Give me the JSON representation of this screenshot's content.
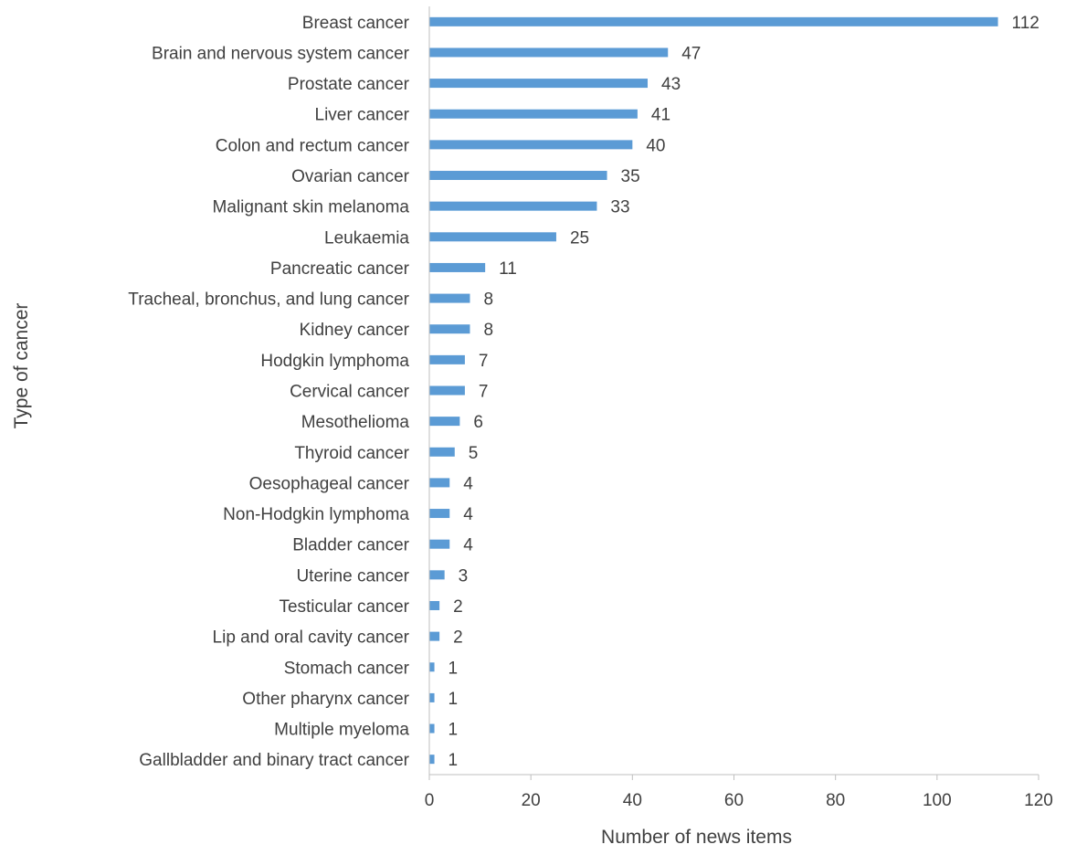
{
  "chart_data": {
    "type": "bar",
    "orientation": "horizontal",
    "title": "",
    "xlabel": "Number of news items",
    "ylabel": "Type of cancer",
    "categories": [
      "Breast cancer",
      "Brain and nervous system cancer",
      "Prostate cancer",
      "Liver cancer",
      "Colon and rectum cancer",
      "Ovarian cancer",
      "Malignant skin melanoma",
      "Leukaemia",
      "Pancreatic cancer",
      "Tracheal, bronchus, and lung cancer",
      "Kidney cancer",
      "Hodgkin lymphoma",
      "Cervical cancer",
      "Mesothelioma",
      "Thyroid cancer",
      "Oesophageal cancer",
      "Non-Hodgkin lymphoma",
      "Bladder cancer",
      "Uterine cancer",
      "Testicular cancer",
      "Lip and oral cavity cancer",
      "Stomach cancer",
      "Other pharynx cancer",
      "Multiple myeloma",
      "Gallbladder and binary tract cancer"
    ],
    "values": [
      112,
      47,
      43,
      41,
      40,
      35,
      33,
      25,
      11,
      8,
      8,
      7,
      7,
      6,
      5,
      4,
      4,
      4,
      3,
      2,
      2,
      1,
      1,
      1,
      1
    ],
    "xlim": [
      0,
      120
    ],
    "xticks": [
      0,
      20,
      40,
      60,
      80,
      100,
      120
    ],
    "data_labels": true,
    "grid": false,
    "legend": "none",
    "colors": {
      "bar": "#5b9bd5",
      "text": "#404040",
      "axis": "#bfbfbf"
    }
  }
}
